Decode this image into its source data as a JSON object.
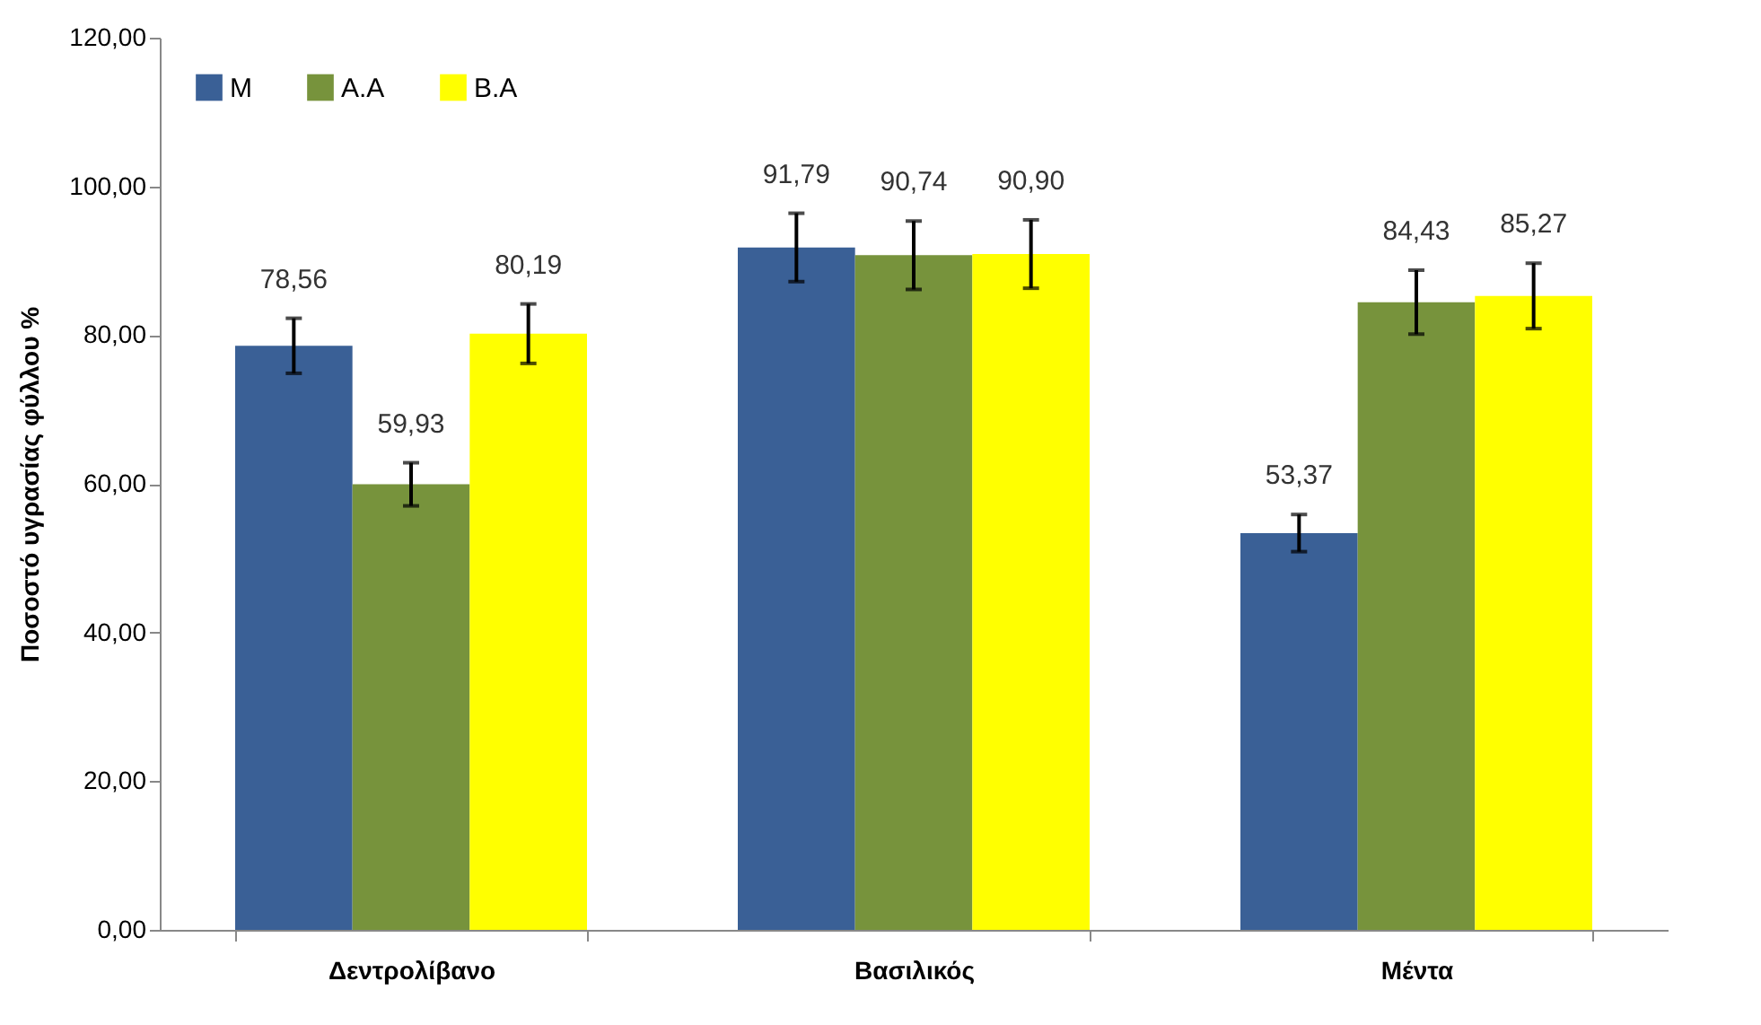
{
  "chart_data": {
    "type": "bar",
    "ylabel": "Ποσοστό υγρασίας φύλλου %",
    "categories": [
      "Δεντρολίβανο",
      "Βασιλικός",
      "Μέντα"
    ],
    "series": [
      {
        "name": "M",
        "color": "#3a6096",
        "values": [
          78.56,
          91.79,
          53.37
        ],
        "errors": [
          3.7,
          4.6,
          2.5
        ],
        "value_labels": [
          "78,56",
          "91,79",
          "53,37"
        ]
      },
      {
        "name": "A.A",
        "color": "#77933c",
        "values": [
          59.93,
          90.74,
          84.43
        ],
        "errors": [
          2.9,
          4.6,
          4.3
        ],
        "value_labels": [
          "59,93",
          "90,74",
          "84,43"
        ]
      },
      {
        "name": "B.A",
        "color": "#ffff00",
        "values": [
          80.19,
          90.9,
          85.27
        ],
        "errors": [
          4.0,
          4.6,
          4.4
        ],
        "value_labels": [
          "80,19",
          "90,90",
          "85,27"
        ]
      }
    ],
    "ylim": [
      0,
      120
    ],
    "yticks": [
      {
        "value": 0,
        "label": "0,00"
      },
      {
        "value": 20,
        "label": "20,00"
      },
      {
        "value": 40,
        "label": "40,00"
      },
      {
        "value": 60,
        "label": "60,00"
      },
      {
        "value": 80,
        "label": "80,00"
      },
      {
        "value": 100,
        "label": "100,00"
      },
      {
        "value": 120,
        "label": "120,00"
      }
    ],
    "legend": "top left",
    "grid": false
  }
}
